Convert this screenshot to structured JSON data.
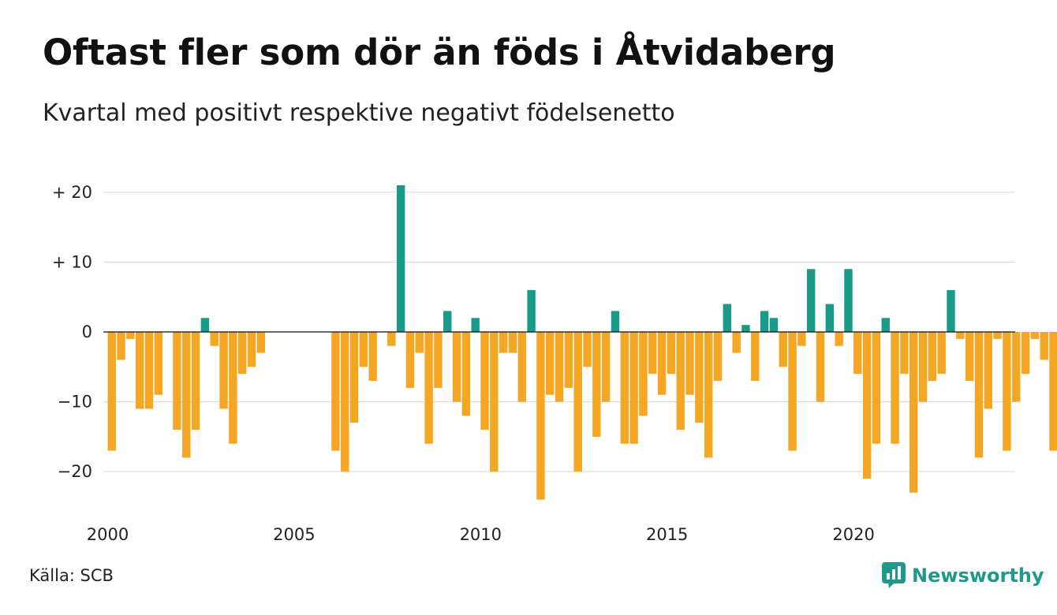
{
  "title": "Oftast fler som dör än föds i Åtvidaberg",
  "subtitle": "Kvartal med positivt respektive negativt födelsenetto",
  "source": "Källa: SCB",
  "brand": "Newsworthy",
  "colors": {
    "positive": "#1a9a88",
    "negative": "#f5a623",
    "grid": "#dddddd",
    "brand": "#1f9a8a"
  },
  "chart_data": {
    "type": "bar",
    "title": "Oftast fler som dör än föds i Åtvidaberg",
    "subtitle": "Kvartal med positivt respektive negativt födelsenetto",
    "xlabel": "",
    "ylabel": "",
    "ylim": [
      -25,
      22
    ],
    "grid": true,
    "y_ticks": [
      {
        "value": 20,
        "label": "+ 20"
      },
      {
        "value": 10,
        "label": "+ 10"
      },
      {
        "value": 0,
        "label": "0"
      },
      {
        "value": -10,
        "label": "−10"
      },
      {
        "value": -20,
        "label": "−20"
      }
    ],
    "x_ticks": [
      {
        "value": 2000,
        "label": "2000"
      },
      {
        "value": 2005,
        "label": "2005"
      },
      {
        "value": 2010,
        "label": "2010"
      },
      {
        "value": 2015,
        "label": "2015"
      },
      {
        "value": 2020,
        "label": "2020"
      }
    ],
    "start_year": 2000,
    "start_quarter": 1,
    "values": [
      -17,
      -4,
      -1,
      -11,
      -11,
      -9,
      0,
      -14,
      -18,
      -14,
      2,
      -2,
      -11,
      -16,
      -6,
      -5,
      -3,
      0,
      0,
      0,
      0,
      0,
      0,
      0,
      -17,
      -20,
      -13,
      -5,
      -7,
      0,
      -2,
      21,
      -8,
      -3,
      -16,
      -8,
      3,
      -10,
      -12,
      2,
      -14,
      -20,
      -3,
      -3,
      -10,
      6,
      -24,
      -9,
      -10,
      -8,
      -20,
      -5,
      -15,
      -10,
      3,
      -16,
      -16,
      -12,
      -6,
      -9,
      -6,
      -14,
      -9,
      -13,
      -18,
      -7,
      4,
      -3,
      1,
      -7,
      3,
      2,
      -5,
      -17,
      -2,
      9,
      -10,
      4,
      -2,
      9,
      -6,
      -21,
      -16,
      2,
      -16,
      -6,
      -23,
      -10,
      -7,
      -6,
      6,
      -1,
      -7,
      -18,
      -11,
      -1,
      -17,
      -10,
      -6,
      -1,
      -4,
      -17
    ]
  }
}
